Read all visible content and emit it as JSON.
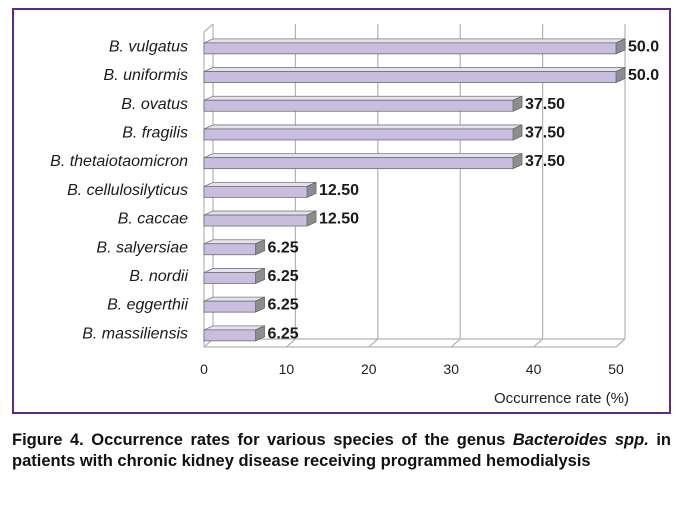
{
  "chart_data": {
    "type": "bar",
    "orientation": "horizontal",
    "categories": [
      "B. vulgatus",
      "B. uniformis",
      "B. ovatus",
      "B. fragilis",
      "B. thetaiotaomicron",
      "B. cellulosilyticus",
      "B. caccae",
      "B. salyersiae",
      "B. nordii",
      "B. eggerthii",
      "B. massiliensis"
    ],
    "values": [
      50.0,
      50.0,
      37.5,
      37.5,
      37.5,
      12.5,
      12.5,
      6.25,
      6.25,
      6.25,
      6.25
    ],
    "data_labels": [
      "50.0",
      "50.0",
      "37.50",
      "37.50",
      "37.50",
      "12.50",
      "12.50",
      "6.25",
      "6.25",
      "6.25",
      "6.25"
    ],
    "xlabel": "Occurrence rate (%)",
    "ylabel": "",
    "xlim": [
      0,
      50
    ],
    "xticks": [
      "0",
      "10",
      "20",
      "30",
      "40",
      "50"
    ],
    "grid": "vertical",
    "style": "3d",
    "colors": {
      "bar_face": "#c9bedf",
      "bar_side": "#8d8d8d",
      "bar_top": "#e6e1ef",
      "frame": "#5b2c83",
      "grid": "#b3b3b3"
    }
  },
  "caption": {
    "prefix": "Figure 4. Occurrence rates for various species of the genus ",
    "italic": "Bacteroides spp.",
    "suffix": " in patients with chronic kidney disease receiving programmed hemodialysis"
  }
}
